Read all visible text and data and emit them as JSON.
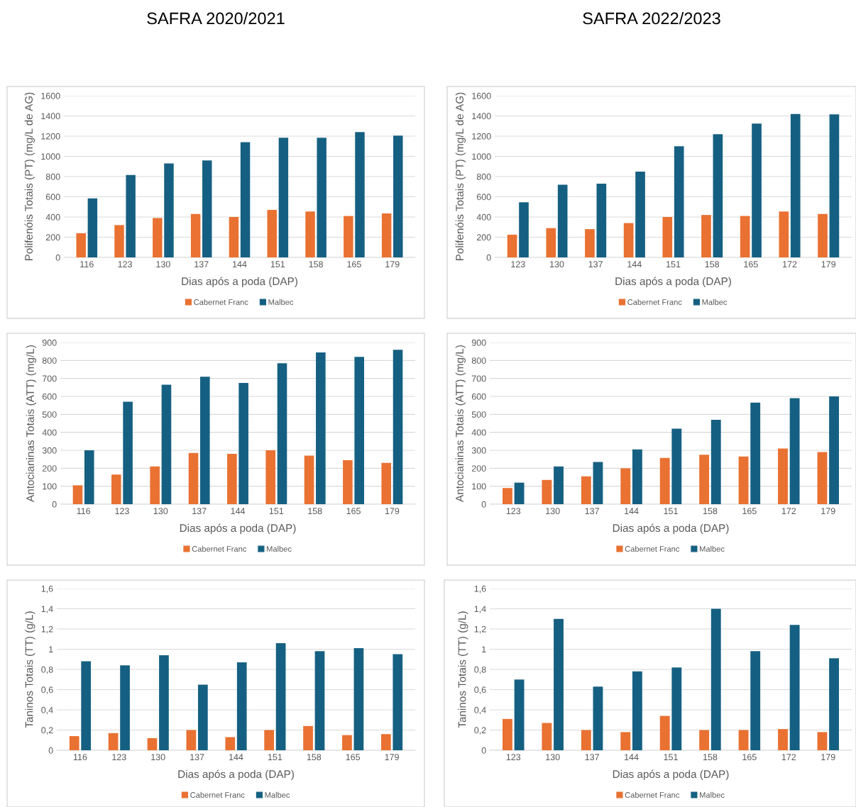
{
  "chart_data": [
    {
      "type": "bar",
      "title": "SAFRA 2020/2021",
      "xlabel": "Dias após a poda (DAP)",
      "ylabel": "Polifenóis Totais (PT) (mg/L de AG)",
      "categories": [
        "116",
        "123",
        "130",
        "137",
        "144",
        "151",
        "158",
        "165",
        "179"
      ],
      "ylim": [
        0,
        1600
      ],
      "yticks": [
        0,
        200,
        400,
        600,
        800,
        1000,
        1200,
        1400,
        1600
      ],
      "grid": "y",
      "legend": "bottom",
      "series": [
        {
          "name": "Cabernet Franc",
          "color": "#e97132",
          "values": [
            240,
            320,
            390,
            430,
            400,
            470,
            455,
            410,
            435
          ]
        },
        {
          "name": "Malbec",
          "color": "#156082",
          "values": [
            585,
            815,
            930,
            960,
            1140,
            1185,
            1185,
            1240,
            1205
          ]
        }
      ]
    },
    {
      "type": "bar",
      "title": "SAFRA 2022/2023",
      "xlabel": "Dias após a poda (DAP)",
      "ylabel": "Polifenóis Totais (PT) (mg/L de AG)",
      "categories": [
        "123",
        "130",
        "137",
        "144",
        "151",
        "158",
        "165",
        "172",
        "179"
      ],
      "ylim": [
        0,
        1600
      ],
      "yticks": [
        0,
        200,
        400,
        600,
        800,
        1000,
        1200,
        1400,
        1600
      ],
      "grid": "y",
      "legend": "bottom",
      "series": [
        {
          "name": "Cabernet Franc",
          "color": "#e97132",
          "values": [
            225,
            290,
            280,
            340,
            400,
            420,
            410,
            455,
            430
          ]
        },
        {
          "name": "Malbec",
          "color": "#156082",
          "values": [
            545,
            720,
            730,
            850,
            1100,
            1220,
            1325,
            1420,
            1415
          ]
        }
      ]
    },
    {
      "type": "bar",
      "xlabel": "Dias após a poda (DAP)",
      "ylabel": "Antocianinas Totais (ATT) (mg/L)",
      "categories": [
        "116",
        "123",
        "130",
        "137",
        "144",
        "151",
        "158",
        "165",
        "179"
      ],
      "ylim": [
        0,
        900
      ],
      "yticks": [
        0,
        100,
        200,
        300,
        400,
        500,
        600,
        700,
        800,
        900
      ],
      "grid": "y",
      "legend": "bottom",
      "series": [
        {
          "name": "Cabernet Franc",
          "color": "#e97132",
          "values": [
            105,
            165,
            210,
            285,
            280,
            300,
            270,
            245,
            230
          ]
        },
        {
          "name": "Malbec",
          "color": "#156082",
          "values": [
            300,
            570,
            665,
            710,
            675,
            785,
            845,
            820,
            860
          ]
        }
      ]
    },
    {
      "type": "bar",
      "xlabel": "Dias após a poda (DAP)",
      "ylabel": "Antocianinas Totais (ATT) (mg/L)",
      "categories": [
        "123",
        "130",
        "137",
        "144",
        "151",
        "158",
        "165",
        "172",
        "179"
      ],
      "ylim": [
        0,
        900
      ],
      "yticks": [
        0,
        100,
        200,
        300,
        400,
        500,
        600,
        700,
        800,
        900
      ],
      "grid": "y",
      "legend": "bottom",
      "series": [
        {
          "name": "Cabernet Franc",
          "color": "#e97132",
          "values": [
            90,
            135,
            155,
            200,
            258,
            275,
            265,
            310,
            290
          ]
        },
        {
          "name": "Malbec",
          "color": "#156082",
          "values": [
            120,
            210,
            235,
            305,
            420,
            470,
            565,
            590,
            600
          ]
        }
      ]
    },
    {
      "type": "bar",
      "xlabel": "Dias após a poda (DAP)",
      "ylabel": "Taninos Totais (TT) (g/L)",
      "categories": [
        "116",
        "123",
        "130",
        "137",
        "144",
        "151",
        "158",
        "165",
        "179"
      ],
      "ylim": [
        0,
        1.6
      ],
      "yticks": [
        0,
        {
          "value": 0.2,
          "label": "0,2"
        },
        {
          "value": 0.4,
          "label": "0,4"
        },
        {
          "value": 0.6,
          "label": "0,6"
        },
        {
          "value": 0.8,
          "label": "0,8"
        },
        1,
        {
          "value": 1.2,
          "label": "1,2"
        },
        {
          "value": 1.4,
          "label": "1,4"
        },
        {
          "value": 1.6,
          "label": "1,6"
        }
      ],
      "grid": "y",
      "legend": "bottom",
      "series": [
        {
          "name": "Cabernet Franc",
          "color": "#e97132",
          "values": [
            0.14,
            0.17,
            0.12,
            0.2,
            0.13,
            0.2,
            0.24,
            0.15,
            0.16
          ]
        },
        {
          "name": "Malbec",
          "color": "#156082",
          "values": [
            0.88,
            0.84,
            0.94,
            0.65,
            0.87,
            1.06,
            0.98,
            1.01,
            0.95
          ]
        }
      ]
    },
    {
      "type": "bar",
      "xlabel": "Dias após a poda (DAP)",
      "ylabel": "Taninos Totais (TT) (g/L)",
      "categories": [
        "123",
        "130",
        "137",
        "144",
        "151",
        "158",
        "165",
        "172",
        "179"
      ],
      "ylim": [
        0,
        1.6
      ],
      "yticks": [
        0,
        {
          "value": 0.2,
          "label": "0,2"
        },
        {
          "value": 0.4,
          "label": "0,4"
        },
        {
          "value": 0.6,
          "label": "0,6"
        },
        {
          "value": 0.8,
          "label": "0,8"
        },
        1,
        {
          "value": 1.2,
          "label": "1,2"
        },
        {
          "value": 1.4,
          "label": "1,4"
        },
        {
          "value": 1.6,
          "label": "1,6"
        }
      ],
      "grid": "y",
      "legend": "bottom",
      "series": [
        {
          "name": "Cabernet Franc",
          "color": "#e97132",
          "values": [
            0.31,
            0.27,
            0.2,
            0.18,
            0.34,
            0.2,
            0.2,
            0.21,
            0.18
          ]
        },
        {
          "name": "Malbec",
          "color": "#156082",
          "values": [
            0.7,
            1.3,
            0.63,
            0.78,
            0.82,
            1.4,
            0.98,
            1.24,
            0.91
          ]
        }
      ]
    }
  ]
}
